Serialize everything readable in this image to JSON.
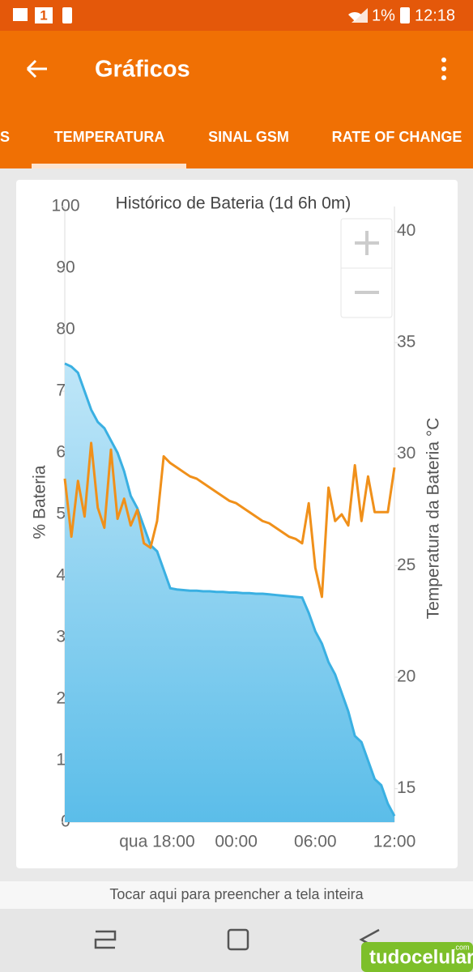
{
  "status_bar": {
    "notification_count": "1",
    "battery": "1%",
    "time": "12:18"
  },
  "app_bar": {
    "title": "Gráficos"
  },
  "tabs": [
    "S",
    "TEMPERATURA",
    "SINAL GSM",
    "RATE OF CHANGE"
  ],
  "chart_data": {
    "type": "combo",
    "title": "Histórico de Bateria (1d 6h 0m)",
    "ylabel": "% Bateria",
    "y2label": "Temperatura da Bateria °C",
    "categories": [
      null,
      null,
      null,
      null,
      null,
      null,
      null,
      null,
      null,
      null,
      null,
      null,
      null,
      null,
      "qua 18:00",
      null,
      null,
      null,
      null,
      null,
      null,
      null,
      null,
      null,
      null,
      null,
      "00:00",
      null,
      null,
      null,
      null,
      null,
      null,
      null,
      null,
      null,
      null,
      null,
      "06:00",
      null,
      null,
      null,
      null,
      null,
      null,
      null,
      null,
      null,
      null,
      null,
      "12:00"
    ],
    "ylim": [
      0,
      100
    ],
    "yticks": [
      0,
      10,
      20,
      30,
      40,
      50,
      60,
      70,
      80,
      90,
      100
    ],
    "y2lim": [
      13.5,
      41.1
    ],
    "y2ticks": [
      15,
      20,
      25,
      30,
      35,
      40
    ],
    "series": [
      {
        "name": "% Bateria",
        "type": "area",
        "color": "#3ab0e2",
        "values": [
          74.5,
          74,
          73,
          70,
          67,
          65,
          64,
          62,
          60,
          57,
          53,
          51,
          48,
          45,
          44,
          41,
          38,
          37.8,
          37.7,
          37.6,
          37.6,
          37.5,
          37.5,
          37.4,
          37.4,
          37.3,
          37.3,
          37.2,
          37.2,
          37.1,
          37.1,
          37.0,
          36.9,
          36.8,
          36.7,
          36.6,
          36.5,
          34,
          31,
          29,
          26,
          24,
          21,
          18,
          14,
          13,
          10,
          7,
          6,
          3,
          1
        ]
      },
      {
        "name": "Temperatura da Bateria °C",
        "type": "line",
        "axis": "y2",
        "color": "#f0901a",
        "values": [
          28.9,
          26.3,
          28.8,
          27.2,
          30.5,
          27.6,
          26.7,
          30.2,
          27.1,
          28.0,
          26.8,
          27.5,
          26.0,
          25.8,
          27.0,
          29.9,
          29.6,
          29.4,
          29.2,
          29.0,
          28.9,
          28.7,
          28.5,
          28.3,
          28.1,
          27.9,
          27.8,
          27.6,
          27.4,
          27.2,
          27.0,
          26.9,
          26.7,
          26.5,
          26.3,
          26.2,
          26.0,
          27.8,
          24.9,
          23.6,
          28.5,
          27.0,
          27.3,
          26.8,
          29.5,
          27.0,
          29.0,
          27.4,
          27.4,
          27.4,
          29.4
        ]
      }
    ]
  },
  "footer": "Tocar aqui para preencher a tela inteira",
  "watermark": {
    "name": "tudocelular",
    "suffix": ".com"
  }
}
